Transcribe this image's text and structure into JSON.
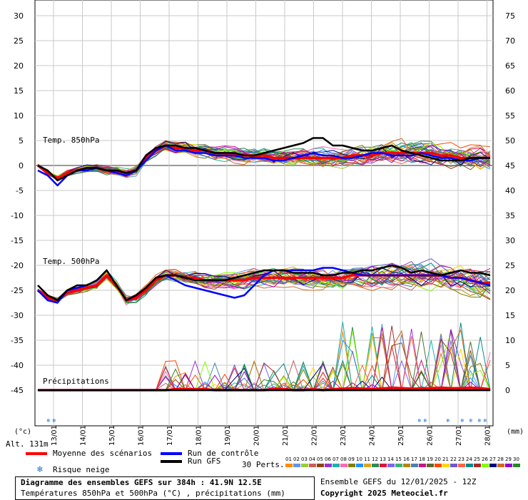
{
  "chart_data": {
    "type": "line",
    "title": "Diagramme des ensembles GEFS sur 384h : 41.9N 12.5E",
    "subtitle": "Températures 850hPa et 500hPa (°C) , précipitations (mm)",
    "y_left_label": "(°c)",
    "y_right_label": "(mm)",
    "y_left_ticks": [
      30,
      25,
      20,
      15,
      10,
      5,
      0,
      -5,
      -10,
      -15,
      -20,
      -25,
      -30,
      -35,
      -40,
      -45
    ],
    "y_right_ticks": [
      75,
      70,
      65,
      60,
      55,
      50,
      45,
      40,
      35,
      30,
      25,
      20,
      15,
      10,
      5,
      0
    ],
    "ylim": [
      -45,
      30
    ],
    "x_ticks": [
      "13/01",
      "14/01",
      "15/01",
      "16/01",
      "17/01",
      "18/01",
      "19/01",
      "20/01",
      "21/01",
      "22/01",
      "23/01",
      "24/01",
      "25/01",
      "26/01",
      "27/01",
      "28/01"
    ],
    "panel_labels": {
      "t850": "Temp. 850hPa",
      "t500": "Temp. 500hPa",
      "precip": "Précipitations"
    },
    "altitude": "Alt. 131m",
    "series": [
      {
        "name": "Moyenne des scénarios",
        "panel": "t850",
        "color": "#ff0000",
        "values": [
          0,
          -1.5,
          -2.5,
          -1.5,
          -1,
          -0.5,
          -0.5,
          -1,
          -1,
          -1.5,
          -1,
          1.5,
          3,
          4,
          3.5,
          3.5,
          3,
          3,
          2.5,
          2.5,
          2,
          2,
          2,
          2,
          1.5,
          1.5,
          1.5,
          1.5,
          1.5,
          1.5,
          1.5,
          1.5,
          2,
          2,
          2,
          2.5,
          2.5,
          2.5,
          2.5,
          2.5,
          2.5,
          2,
          2,
          1.5,
          1.5,
          1.5,
          1.5
        ]
      },
      {
        "name": "Run de contrôle",
        "panel": "t850",
        "color": "#0000ff",
        "values": [
          -1,
          -2,
          -4,
          -2,
          -1,
          -1,
          -0.5,
          -1,
          -1.5,
          -2,
          -1,
          1,
          3,
          4,
          3,
          3,
          2.5,
          2.5,
          2,
          2,
          2,
          1.5,
          1.5,
          1.5,
          1,
          1,
          1.5,
          2,
          2.5,
          2,
          2,
          1.5,
          1.5,
          2,
          2.5,
          2.5,
          2,
          2,
          2,
          2.5,
          2,
          1.5,
          1.5,
          1,
          1,
          1.5,
          1.5
        ]
      },
      {
        "name": "Run GFS",
        "panel": "t850",
        "color": "#000000",
        "values": [
          0,
          -1,
          -3,
          -2,
          -1,
          -0.5,
          -0.5,
          -1,
          -1,
          -1.5,
          -1,
          2,
          3.5,
          4,
          4,
          3.5,
          3.5,
          3,
          2.5,
          2.5,
          2.5,
          2,
          2,
          2.5,
          3,
          3.5,
          4,
          4.5,
          5.5,
          5.5,
          4,
          4,
          3.5,
          3,
          3,
          3.5,
          4,
          3,
          2.5,
          2,
          1.5,
          1,
          1,
          1,
          1.5,
          1.5,
          1.5
        ]
      },
      {
        "name": "Moyenne des scénarios",
        "panel": "t500",
        "color": "#ff0000",
        "values": [
          -25,
          -26.5,
          -27,
          -25.5,
          -25,
          -24.5,
          -24,
          -22,
          -24,
          -27,
          -26.5,
          -25,
          -23,
          -22,
          -22,
          -22.5,
          -22.5,
          -23,
          -23,
          -23,
          -23,
          -23,
          -22.5,
          -22.5,
          -22.5,
          -22.5,
          -22.5,
          -22.5,
          -22.5,
          -22.5,
          -22.5,
          -22.5,
          -22,
          -22,
          -22,
          -22,
          -22,
          -22,
          -22,
          -22,
          -22,
          -22,
          -22.5,
          -22.5,
          -23,
          -23.5,
          -23.5
        ]
      },
      {
        "name": "Run de contrôle",
        "panel": "t500",
        "color": "#0000ff",
        "values": [
          -25,
          -27,
          -27.5,
          -25,
          -24.5,
          -24,
          -23,
          -21,
          -24,
          -27,
          -26,
          -24.5,
          -22.5,
          -22,
          -23,
          -24,
          -24.5,
          -25,
          -25.5,
          -26,
          -26.5,
          -26,
          -24,
          -22,
          -21,
          -21,
          -21,
          -21,
          -21,
          -20.5,
          -20.5,
          -21,
          -21.5,
          -22,
          -22,
          -22,
          -22,
          -22,
          -22,
          -22,
          -22,
          -22,
          -22.5,
          -22.5,
          -23,
          -23.5,
          -24
        ]
      },
      {
        "name": "Run GFS",
        "panel": "t500",
        "color": "#000000",
        "values": [
          -24,
          -26,
          -27,
          -25,
          -24,
          -24,
          -23,
          -21,
          -24,
          -27,
          -26,
          -24.5,
          -22.5,
          -22,
          -22,
          -22.5,
          -23,
          -23,
          -23,
          -23,
          -22.5,
          -22,
          -21.5,
          -21,
          -21,
          -21,
          -21.5,
          -21.5,
          -21.5,
          -22,
          -22,
          -21.5,
          -21.5,
          -21,
          -21,
          -20.5,
          -20,
          -20.5,
          -21.5,
          -21,
          -21.5,
          -22,
          -21.5,
          -21,
          -21.5,
          -21.5,
          -22
        ]
      },
      {
        "name": "Moyenne des scénarios",
        "panel": "precip",
        "color": "#ff0000",
        "values": [
          0,
          0,
          0,
          0,
          0,
          0,
          0,
          0,
          0,
          0,
          0,
          0,
          0,
          0,
          0.2,
          0.2,
          0.2,
          0.2,
          0,
          0,
          0,
          0,
          0,
          0,
          0.2,
          0.2,
          0,
          0,
          0.2,
          0,
          0.2,
          0.3,
          0.4,
          0.3,
          0.2,
          0.3,
          0.5,
          0.4,
          0.3,
          0.3,
          0.4,
          0.5,
          0.4,
          0.4,
          0.5,
          0.4,
          0.2
        ]
      },
      {
        "name": "Run de contrôle",
        "panel": "precip",
        "color": "#0000ff",
        "values": [
          0,
          0,
          0,
          0,
          0,
          0,
          0,
          0,
          0,
          0,
          0,
          0,
          0,
          0,
          0,
          0,
          0,
          0,
          0,
          0,
          0,
          0,
          0,
          0,
          0,
          0,
          0,
          0,
          0,
          0,
          0,
          0,
          0,
          0,
          0,
          0,
          0,
          0,
          0,
          0,
          0,
          0,
          0,
          0,
          0,
          0,
          0
        ]
      },
      {
        "name": "Run GFS",
        "panel": "precip",
        "color": "#000000",
        "values": [
          0,
          0,
          0,
          0,
          0,
          0,
          0,
          0,
          0,
          0,
          0,
          0,
          0,
          0,
          0,
          0,
          0,
          0,
          0,
          0,
          0,
          0,
          0,
          0,
          0,
          0,
          0,
          0,
          0,
          0,
          0,
          0,
          0,
          0,
          0,
          0,
          0,
          0,
          0,
          0,
          0,
          0,
          0,
          0,
          0,
          0,
          0
        ]
      }
    ],
    "snow_risk_days": [
      "13/01",
      "26/01",
      "27/01",
      "28/01"
    ],
    "ensemble_members": [
      "01",
      "02",
      "03",
      "04",
      "05",
      "06",
      "07",
      "08",
      "09",
      "10",
      "11",
      "12",
      "13",
      "14",
      "15",
      "16",
      "17",
      "18",
      "19",
      "20",
      "21",
      "22",
      "23",
      "24",
      "25",
      "26",
      "27",
      "28",
      "29",
      "30"
    ],
    "member_colors": [
      "#ff8c00",
      "#6495ed",
      "#9acd32",
      "#cd5c5c",
      "#8b4513",
      "#9932cc",
      "#20b2aa",
      "#ff69b4",
      "#808000",
      "#1e90ff",
      "#daa520",
      "#2e8b57",
      "#dc143c",
      "#7b68ee",
      "#3cb371",
      "#b8860b",
      "#4682b4",
      "#c71585",
      "#556b2f",
      "#ff4500",
      "#ffd700",
      "#6a5acd",
      "#ff6347",
      "#008b8b",
      "#a52a2a",
      "#7fff00",
      "#000080",
      "#d2691e",
      "#9400d3",
      "#228b22"
    ]
  },
  "legend": {
    "mean": "Moyenne des scénarios",
    "control": "Run de contrôle",
    "gfs": "Run GFS",
    "snow": "Risque neige",
    "perts": "30 Perts.",
    "ensemble_info": "Ensemble GEFS du 12/01/2025 - 12Z",
    "copyright": "Copyright 2025 Meteociel.fr"
  },
  "footer": {
    "title": "Diagramme des ensembles GEFS sur 384h : 41.9N 12.5E",
    "subtitle": "Températures 850hPa et 500hPa (°C) , précipitations (mm)"
  }
}
